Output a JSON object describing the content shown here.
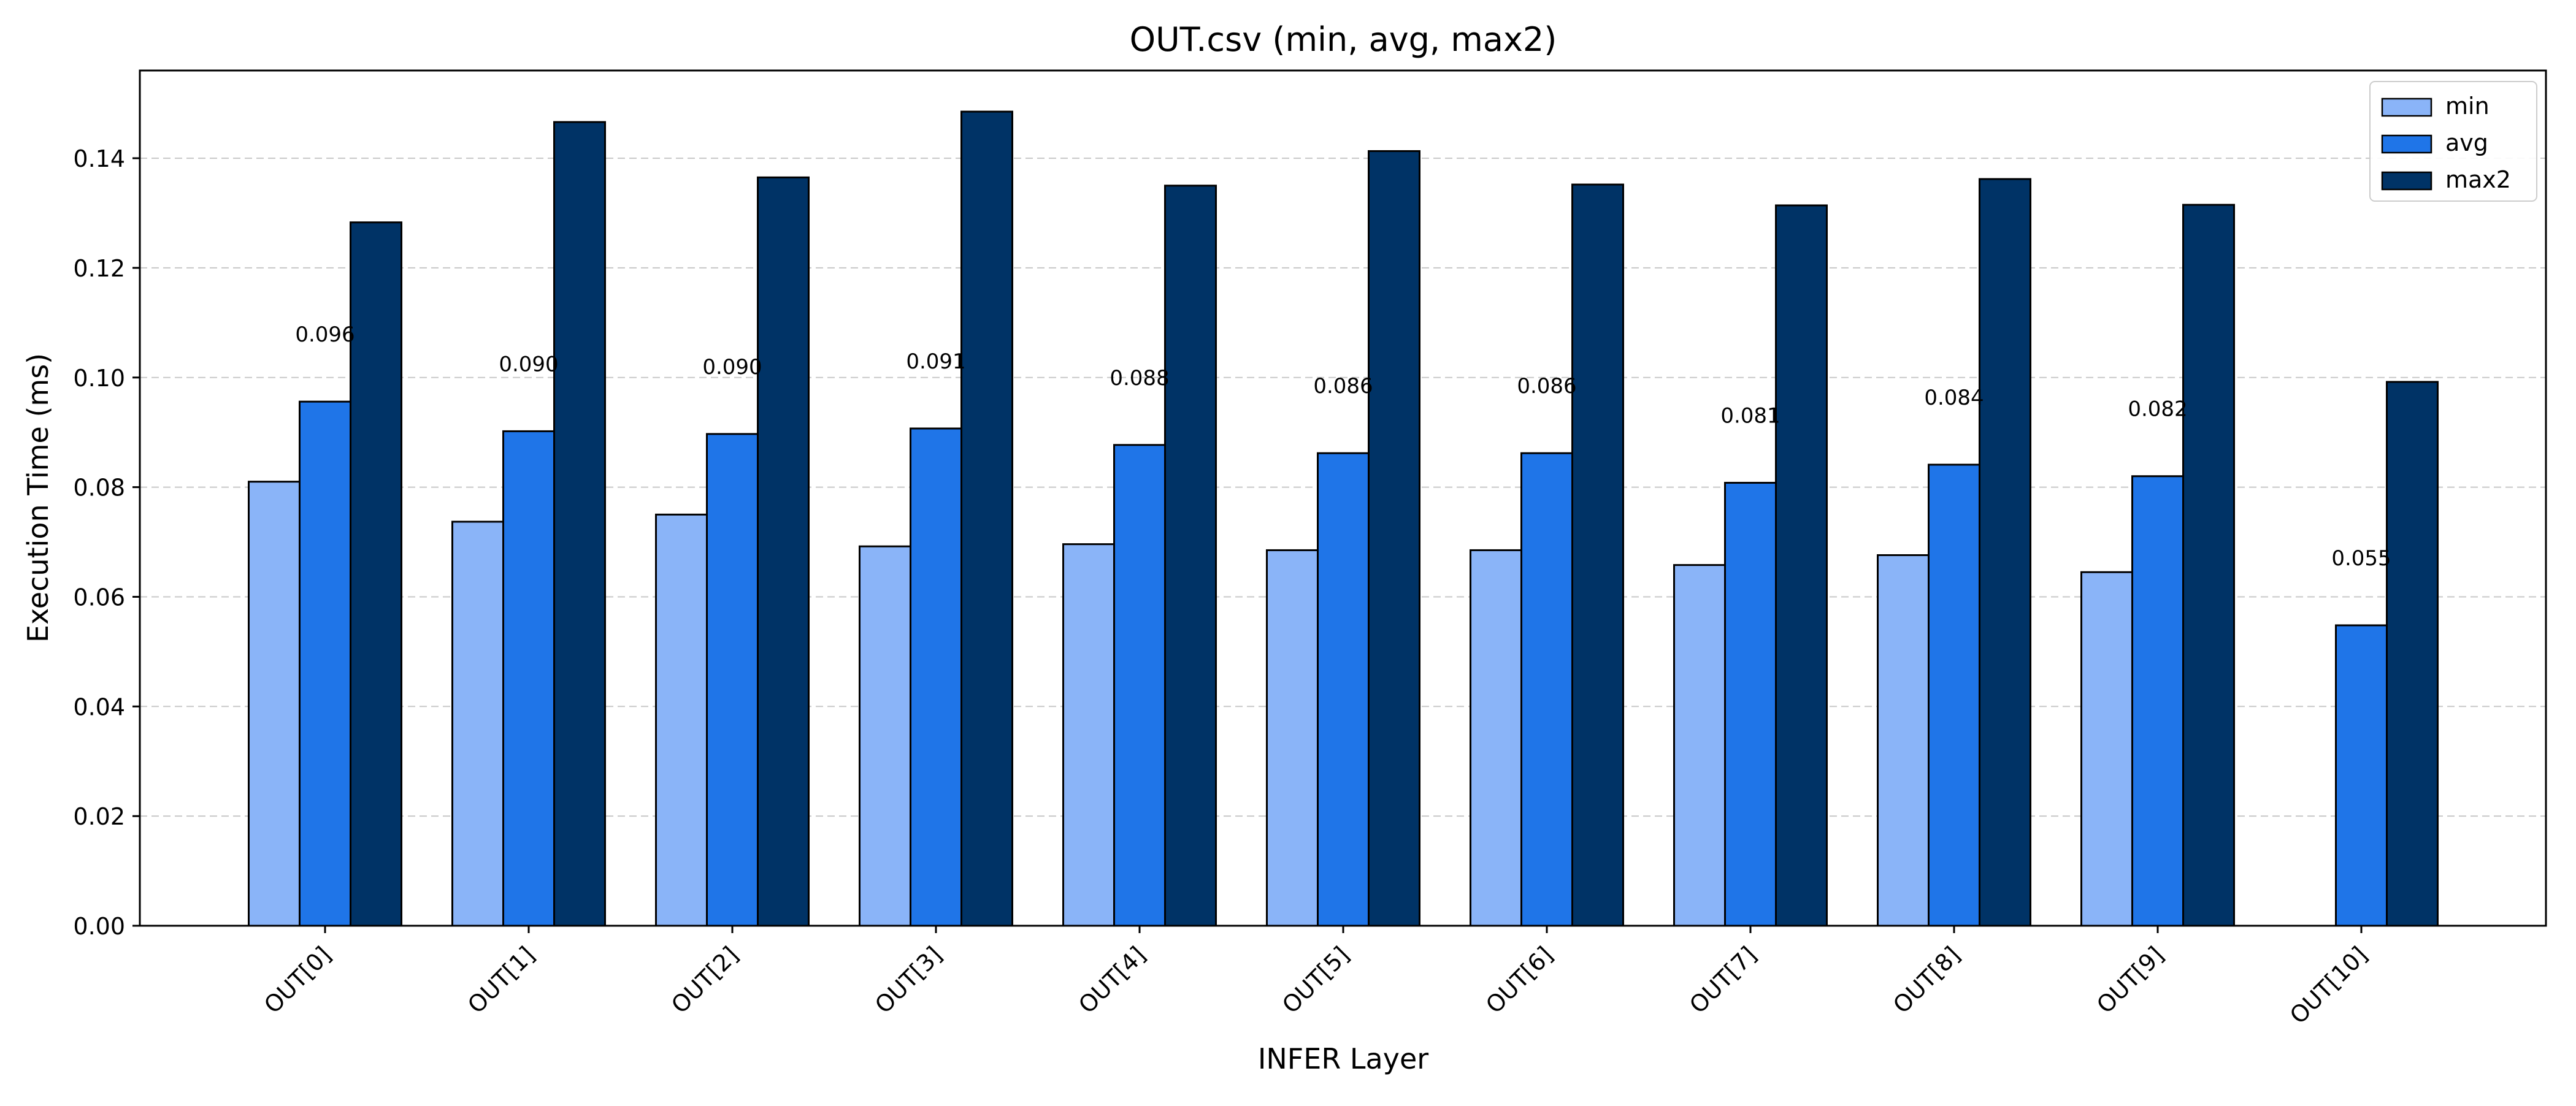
{
  "chart_data": {
    "type": "bar",
    "title": "OUT.csv (min, avg, max2)",
    "xlabel": "INFER Layer",
    "ylabel": "Execution Time (ms)",
    "ylim": [
      0,
      0.156
    ],
    "yticks": [
      "0.00",
      "0.02",
      "0.04",
      "0.06",
      "0.08",
      "0.10",
      "0.12",
      "0.14"
    ],
    "grid": "y-dashed",
    "legend_position": "top-right",
    "categories": [
      "OUT[0]",
      "OUT[1]",
      "OUT[2]",
      "OUT[3]",
      "OUT[4]",
      "OUT[5]",
      "OUT[6]",
      "OUT[7]",
      "OUT[8]",
      "OUT[9]",
      "OUT[10]"
    ],
    "series": [
      {
        "name": "min",
        "color": "#8ab4f8",
        "values": [
          0.081,
          0.0737,
          0.075,
          0.0692,
          0.0696,
          0.0685,
          0.0685,
          0.0658,
          0.0676,
          0.0645,
          0.0
        ]
      },
      {
        "name": "avg",
        "color": "#1f75e8",
        "values": [
          0.0956,
          0.0902,
          0.0897,
          0.0907,
          0.0877,
          0.0862,
          0.0862,
          0.0808,
          0.0841,
          0.082,
          0.0548
        ]
      },
      {
        "name": "max2",
        "color": "#003366",
        "values": [
          0.1283,
          0.1466,
          0.1365,
          0.1485,
          0.135,
          0.1413,
          0.1352,
          0.1314,
          0.1362,
          0.1315,
          0.0992
        ]
      }
    ],
    "data_labels": [
      "0.096",
      "0.090",
      "0.090",
      "0.091",
      "0.088",
      "0.086",
      "0.086",
      "0.081",
      "0.084",
      "0.082",
      "0.055"
    ]
  }
}
